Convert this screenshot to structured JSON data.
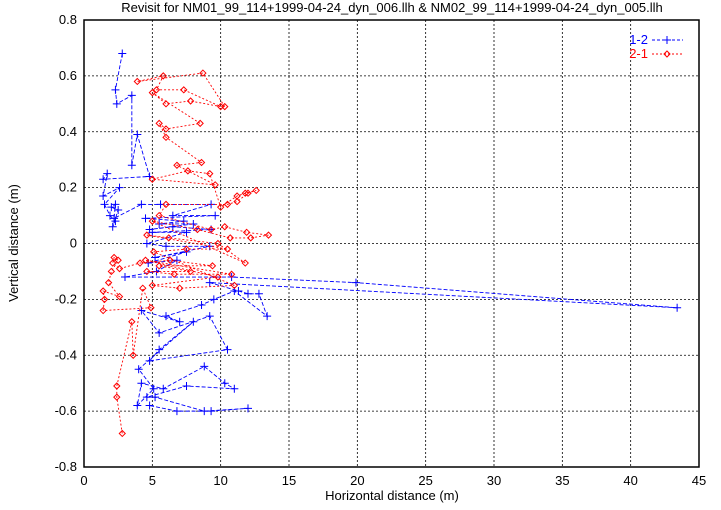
{
  "chart_data": {
    "type": "line",
    "title": "Revisit for NM01_99_114+1999-04-24_dyn_006.llh & NM02_99_114+1999-04-24_dyn_005.llh",
    "xlabel": "Horizontal distance (m)",
    "ylabel": "Vertical distance (m)",
    "xlim": [
      0,
      45
    ],
    "ylim": [
      -0.8,
      0.8
    ],
    "xticks": [
      "0",
      "5",
      "10",
      "15",
      "20",
      "25",
      "30",
      "35",
      "40",
      "45"
    ],
    "yticks": [
      "-0.8",
      "-0.6",
      "-0.4",
      "-0.2",
      "0",
      "0.2",
      "0.4",
      "0.6",
      "0.8"
    ],
    "grid": true,
    "legend_position": "top-right",
    "colors": {
      "1-2": "#0000ff",
      "2-1": "#ff0000"
    },
    "series": [
      {
        "name": "1-2",
        "marker": "plus",
        "points": [
          [
            2.8,
            0.68
          ],
          [
            2.3,
            0.55
          ],
          [
            2.4,
            0.5
          ],
          [
            3.5,
            0.53
          ],
          [
            3.5,
            0.28
          ],
          [
            3.9,
            0.39
          ],
          [
            4.8,
            0.24
          ],
          [
            1.4,
            0.23
          ],
          [
            1.7,
            0.25
          ],
          [
            1.4,
            0.17
          ],
          [
            2.6,
            0.2
          ],
          [
            1.5,
            0.14
          ],
          [
            1.9,
            0.1
          ],
          [
            2.3,
            0.08
          ],
          [
            2.1,
            0.06
          ],
          [
            2.5,
            0.12
          ],
          [
            2.0,
            0.13
          ],
          [
            2.3,
            0.14
          ],
          [
            2.2,
            0.09
          ],
          [
            4.2,
            0.14
          ],
          [
            5.6,
            0.14
          ],
          [
            9.3,
            0.14
          ],
          [
            6.5,
            0.1
          ],
          [
            9.6,
            0.1
          ],
          [
            4.5,
            0.09
          ],
          [
            7.3,
            0.08
          ],
          [
            5.5,
            0.07
          ],
          [
            8.0,
            0.07
          ],
          [
            4.8,
            0.05
          ],
          [
            6.5,
            0.06
          ],
          [
            9.3,
            0.05
          ],
          [
            5.0,
            0.04
          ],
          [
            7.5,
            0.04
          ],
          [
            4.6,
            0.0
          ],
          [
            6.0,
            -0.01
          ],
          [
            9.2,
            -0.01
          ],
          [
            5.2,
            -0.05
          ],
          [
            7.5,
            -0.03
          ],
          [
            4.7,
            -0.07
          ],
          [
            6.8,
            -0.06
          ],
          [
            5.3,
            -0.1
          ],
          [
            3.0,
            -0.12
          ],
          [
            10.8,
            -0.12
          ],
          [
            19.9,
            -0.14
          ],
          [
            43.4,
            -0.23
          ],
          [
            9.2,
            -0.14
          ],
          [
            11.3,
            -0.17
          ],
          [
            12.0,
            -0.18
          ],
          [
            12.8,
            -0.18
          ],
          [
            13.4,
            -0.26
          ],
          [
            11.0,
            -0.17
          ],
          [
            9.5,
            -0.2
          ],
          [
            8.6,
            -0.22
          ],
          [
            6.0,
            -0.26
          ],
          [
            7.0,
            -0.28
          ],
          [
            4.2,
            -0.24
          ],
          [
            5.5,
            -0.32
          ],
          [
            9.2,
            -0.26
          ],
          [
            10.5,
            -0.38
          ],
          [
            4.8,
            -0.42
          ],
          [
            5.5,
            -0.38
          ],
          [
            8.0,
            -0.28
          ],
          [
            4.0,
            -0.45
          ],
          [
            5.1,
            -0.52
          ],
          [
            3.9,
            -0.58
          ],
          [
            4.2,
            -0.5
          ],
          [
            5.8,
            -0.52
          ],
          [
            8.8,
            -0.44
          ],
          [
            10.3,
            -0.5
          ],
          [
            11.0,
            -0.52
          ],
          [
            7.5,
            -0.51
          ],
          [
            4.6,
            -0.55
          ],
          [
            5.2,
            -0.55
          ],
          [
            8.8,
            -0.6
          ],
          [
            12.0,
            -0.59
          ],
          [
            9.3,
            -0.6
          ],
          [
            6.8,
            -0.6
          ],
          [
            4.8,
            -0.58
          ]
        ]
      },
      {
        "name": "2-1",
        "marker": "diamond",
        "points": [
          [
            2.8,
            -0.68
          ],
          [
            2.4,
            -0.55
          ],
          [
            2.4,
            -0.51
          ],
          [
            3.5,
            -0.28
          ],
          [
            3.6,
            -0.4
          ],
          [
            4.3,
            -0.16
          ],
          [
            4.9,
            -0.23
          ],
          [
            1.4,
            -0.24
          ],
          [
            1.5,
            -0.2
          ],
          [
            1.4,
            -0.17
          ],
          [
            2.6,
            -0.19
          ],
          [
            1.8,
            -0.14
          ],
          [
            2.0,
            -0.1
          ],
          [
            2.5,
            -0.06
          ],
          [
            2.2,
            -0.05
          ],
          [
            2.1,
            -0.07
          ],
          [
            2.6,
            -0.09
          ],
          [
            4.1,
            -0.07
          ],
          [
            6.3,
            -0.06
          ],
          [
            9.4,
            -0.08
          ],
          [
            5.5,
            -0.08
          ],
          [
            7.8,
            -0.1
          ],
          [
            4.6,
            -0.1
          ],
          [
            6.6,
            -0.11
          ],
          [
            10.8,
            -0.11
          ],
          [
            4.5,
            -0.06
          ],
          [
            9.8,
            -0.12
          ],
          [
            5.0,
            -0.15
          ],
          [
            7.0,
            -0.16
          ],
          [
            11.0,
            -0.15
          ],
          [
            5.1,
            -0.03
          ],
          [
            7.5,
            -0.02
          ],
          [
            10.5,
            -0.02
          ],
          [
            4.6,
            0.03
          ],
          [
            6.2,
            0.02
          ],
          [
            9.8,
            0.0
          ],
          [
            11.8,
            -0.07
          ],
          [
            5.0,
            0.08
          ],
          [
            8.3,
            0.05
          ],
          [
            10.7,
            0.02
          ],
          [
            12.2,
            0.02
          ],
          [
            13.5,
            0.03
          ],
          [
            11.9,
            0.04
          ],
          [
            10.3,
            0.06
          ],
          [
            9.3,
            0.05
          ],
          [
            5.5,
            0.1
          ],
          [
            6.0,
            0.14
          ],
          [
            10.5,
            0.14
          ],
          [
            11.2,
            0.15
          ],
          [
            12.0,
            0.18
          ],
          [
            12.6,
            0.19
          ],
          [
            11.8,
            0.18
          ],
          [
            11.2,
            0.17
          ],
          [
            10.0,
            0.13
          ],
          [
            9.2,
            0.25
          ],
          [
            7.6,
            0.26
          ],
          [
            5.0,
            0.23
          ],
          [
            9.6,
            0.21
          ],
          [
            6.8,
            0.28
          ],
          [
            8.6,
            0.29
          ],
          [
            6.0,
            0.38
          ],
          [
            5.5,
            0.43
          ],
          [
            6.0,
            0.41
          ],
          [
            8.5,
            0.43
          ],
          [
            5.0,
            0.54
          ],
          [
            6.0,
            0.5
          ],
          [
            7.8,
            0.51
          ],
          [
            10.0,
            0.49
          ],
          [
            7.3,
            0.55
          ],
          [
            5.3,
            0.55
          ],
          [
            5.8,
            0.6
          ],
          [
            3.9,
            0.58
          ],
          [
            8.7,
            0.61
          ],
          [
            10.3,
            0.49
          ]
        ]
      }
    ]
  }
}
